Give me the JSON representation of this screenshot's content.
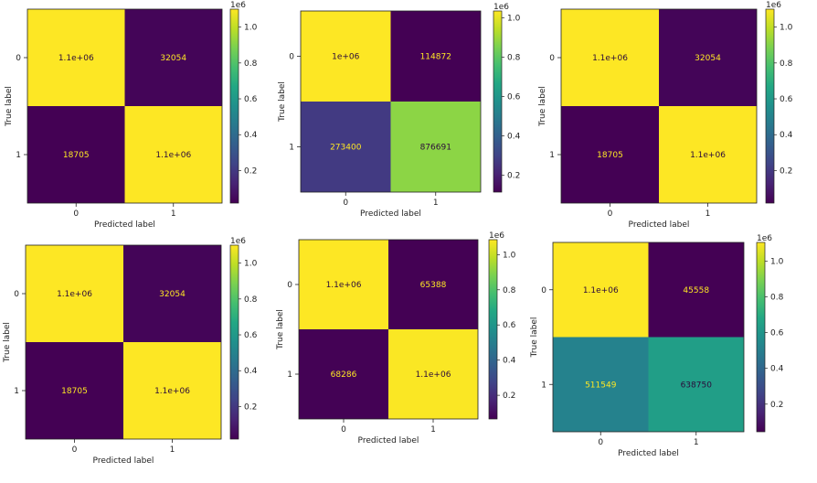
{
  "chart_data": [
    {
      "type": "heatmap",
      "cells": [
        [
          "1.1e+06",
          "32054"
        ],
        [
          "18705",
          "1.1e+06"
        ]
      ],
      "values": [
        [
          1100000,
          32054
        ],
        [
          18705,
          1100000
        ]
      ],
      "xlabel": "Predicted label",
      "ylabel": "True label",
      "x_ticks": [
        "0",
        "1"
      ],
      "y_ticks": [
        "0",
        "1"
      ],
      "colorbar": {
        "ticks": [
          "0.2",
          "0.4",
          "0.6",
          "0.8",
          "1.0"
        ],
        "tick_values": [
          0.2,
          0.4,
          0.6,
          0.8,
          1.0
        ],
        "range": [
          0.018705,
          1.1
        ],
        "exponent": "1e6"
      },
      "colormap": "viridis"
    },
    {
      "type": "heatmap",
      "cells": [
        [
          "1e+06",
          "114872"
        ],
        [
          "273400",
          "876691"
        ]
      ],
      "values": [
        [
          1035000,
          114872
        ],
        [
          273400,
          876691
        ]
      ],
      "xlabel": "Predicted label",
      "ylabel": "True label",
      "x_ticks": [
        "0",
        "1"
      ],
      "y_ticks": [
        "0",
        "1"
      ],
      "colorbar": {
        "ticks": [
          "0.2",
          "0.4",
          "0.6",
          "0.8",
          "1.0"
        ],
        "tick_values": [
          0.2,
          0.4,
          0.6,
          0.8,
          1.0
        ],
        "range": [
          0.114872,
          1.035
        ],
        "exponent": "1e6"
      },
      "colormap": "viridis"
    },
    {
      "type": "heatmap",
      "cells": [
        [
          "1.1e+06",
          "32054"
        ],
        [
          "18705",
          "1.1e+06"
        ]
      ],
      "values": [
        [
          1100000,
          32054
        ],
        [
          18705,
          1100000
        ]
      ],
      "xlabel": "Predicted label",
      "ylabel": "True label",
      "x_ticks": [
        "0",
        "1"
      ],
      "y_ticks": [
        "0",
        "1"
      ],
      "colorbar": {
        "ticks": [
          "0.2",
          "0.4",
          "0.6",
          "0.8",
          "1.0"
        ],
        "tick_values": [
          0.2,
          0.4,
          0.6,
          0.8,
          1.0
        ],
        "range": [
          0.018705,
          1.1
        ],
        "exponent": "1e6"
      },
      "colormap": "viridis"
    },
    {
      "type": "heatmap",
      "cells": [
        [
          "1.1e+06",
          "32054"
        ],
        [
          "18705",
          "1.1e+06"
        ]
      ],
      "values": [
        [
          1100000,
          32054
        ],
        [
          18705,
          1100000
        ]
      ],
      "xlabel": "Predicted label",
      "ylabel": "True label",
      "x_ticks": [
        "0",
        "1"
      ],
      "y_ticks": [
        "0",
        "1"
      ],
      "colorbar": {
        "ticks": [
          "0.2",
          "0.4",
          "0.6",
          "0.8",
          "1.0"
        ],
        "tick_values": [
          0.2,
          0.4,
          0.6,
          0.8,
          1.0
        ],
        "range": [
          0.018705,
          1.1
        ],
        "exponent": "1e6"
      },
      "colormap": "viridis"
    },
    {
      "type": "heatmap",
      "cells": [
        [
          "1.1e+06",
          "65388"
        ],
        [
          "68286",
          "1.1e+06"
        ]
      ],
      "values": [
        [
          1085000,
          65388
        ],
        [
          68286,
          1080000
        ]
      ],
      "xlabel": "Predicted label",
      "ylabel": "True label",
      "x_ticks": [
        "0",
        "1"
      ],
      "y_ticks": [
        "0",
        "1"
      ],
      "colorbar": {
        "ticks": [
          "0.2",
          "0.4",
          "0.6",
          "0.8",
          "1.0"
        ],
        "tick_values": [
          0.2,
          0.4,
          0.6,
          0.8,
          1.0
        ],
        "range": [
          0.065388,
          1.085
        ],
        "exponent": "1e6"
      },
      "colormap": "viridis"
    },
    {
      "type": "heatmap",
      "cells": [
        [
          "1.1e+06",
          "45558"
        ],
        [
          "511549",
          "638750"
        ]
      ],
      "values": [
        [
          1104000,
          45558
        ],
        [
          511549,
          638750
        ]
      ],
      "xlabel": "Predicted label",
      "ylabel": "True label",
      "x_ticks": [
        "0",
        "1"
      ],
      "y_ticks": [
        "0",
        "1"
      ],
      "colorbar": {
        "ticks": [
          "0.2",
          "0.4",
          "0.6",
          "0.8",
          "1.0"
        ],
        "tick_values": [
          0.2,
          0.4,
          0.6,
          0.8,
          1.0
        ],
        "range": [
          0.045558,
          1.104
        ],
        "exponent": "1e6"
      },
      "colormap": "viridis"
    }
  ]
}
